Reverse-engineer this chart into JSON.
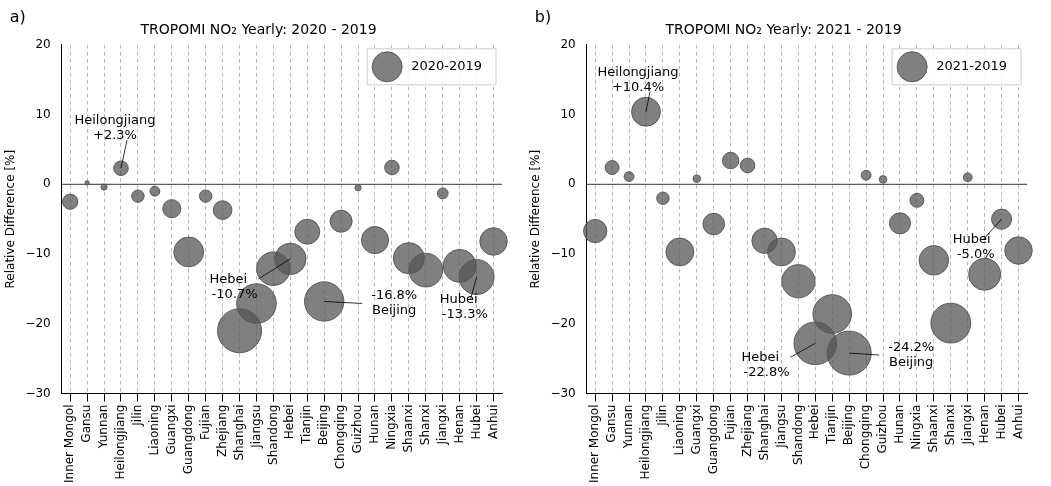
{
  "chart_data": [
    {
      "type": "bubble",
      "title": "TROPOMI NO₂ Yearly: 2020 - 2019",
      "ylabel": "Relative Difference [%]",
      "categories": [
        "Inner Mongol",
        "Gansu",
        "Yunnan",
        "Heilongjiang",
        "Jilin",
        "Liaoning",
        "Guangxi",
        "Guangdong",
        "Fujian",
        "Zhejiang",
        "Shanghai",
        "Jiangsu",
        "Shandong",
        "Hebei",
        "Tianjin",
        "Beijing",
        "Chongqing",
        "Guizhou",
        "Hunan",
        "Ningxia",
        "Shaanxi",
        "Shanxi",
        "Jiangxi",
        "Henan",
        "Hubei",
        "Anhui"
      ],
      "series": [
        {
          "name": "2020-2019",
          "color": "#555555",
          "values": [
            -2.5,
            0.2,
            -0.4,
            2.3,
            -1.7,
            -1.0,
            -3.5,
            -9.7,
            -1.7,
            -3.7,
            -21.0,
            -17.1,
            -12.1,
            -10.7,
            -6.8,
            -16.8,
            -5.3,
            -0.5,
            -8.0,
            2.4,
            -10.6,
            -12.3,
            -1.3,
            -11.7,
            -13.3,
            -8.2
          ],
          "sizes": [
            0.12,
            0.01,
            0.02,
            0.11,
            0.08,
            0.05,
            0.17,
            0.46,
            0.08,
            0.18,
            1,
            0.81,
            0.58,
            0.51,
            0.32,
            0.8,
            0.25,
            0.02,
            0.38,
            0.11,
            0.5,
            0.59,
            0.06,
            0.56,
            0.63,
            0.39
          ]
        }
      ],
      "ylim": [
        -30,
        20
      ],
      "yticks": [
        -30,
        -20,
        -10,
        0,
        10,
        20
      ],
      "grid": "x",
      "legend": "top right",
      "ref_lines": [
        {
          "axis": "y",
          "value": 0
        }
      ],
      "annotations": [
        "a)",
        {
          "text": "Heilongjiang\n+2.3%",
          "x": "Heilongjiang",
          "y": 2.3
        },
        {
          "text": "Hebei\n   -10.7%",
          "x": "Hebei",
          "y": -10.7
        },
        {
          "text": "-16.8%\nBeijing",
          "x": "Beijing",
          "y": -16.8
        },
        {
          "text": "Hubei\n   -13.3%",
          "x": "Hubei",
          "y": -13.3
        }
      ]
    },
    {
      "type": "bubble",
      "title": "TROPOMI NO₂ Yearly: 2021 - 2019",
      "ylabel": "Relative Difference [%]",
      "categories": [
        "Inner Mongol",
        "Gansu",
        "Yunnan",
        "Heilongjiang",
        "Jilin",
        "Liaoning",
        "Guangxi",
        "Guangdong",
        "Fujian",
        "Zhejiang",
        "Shanghai",
        "Jiangsu",
        "Shandong",
        "Hebei",
        "Tianjin",
        "Beijing",
        "Chongqing",
        "Guizhou",
        "Hunan",
        "Ningxia",
        "Shaanxi",
        "Shanxi",
        "Jiangxi",
        "Henan",
        "Hubei",
        "Anhui"
      ],
      "series": [
        {
          "name": "2021-2019",
          "color": "#555555",
          "values": [
            -6.7,
            2.4,
            1.1,
            10.4,
            -2.0,
            -9.7,
            0.8,
            -5.7,
            3.4,
            2.7,
            -8.1,
            -9.7,
            -13.9,
            -22.8,
            -18.6,
            -24.2,
            1.3,
            0.7,
            -5.6,
            -2.3,
            -10.9,
            -19.9,
            1.0,
            -12.9,
            -5.0,
            -9.5
          ],
          "sizes": [
            0.28,
            0.1,
            0.05,
            0.43,
            0.08,
            0.4,
            0.03,
            0.24,
            0.14,
            0.11,
            0.33,
            0.4,
            0.57,
            0.94,
            0.77,
            1,
            0.05,
            0.03,
            0.23,
            0.1,
            0.45,
            0.82,
            0.04,
            0.53,
            0.21,
            0.39
          ]
        }
      ],
      "ylim": [
        -30,
        20
      ],
      "yticks": [
        -30,
        -20,
        -10,
        0,
        10,
        20
      ],
      "grid": "x",
      "legend": "top right",
      "ref_lines": [
        {
          "axis": "y",
          "value": 0
        }
      ],
      "annotations": [
        "b)",
        {
          "text": "Heilongjiang\n+10.4%",
          "x": "Heilongjiang",
          "y": 10.4
        },
        {
          "text": "Hebei\n   -22.8%",
          "x": "Hebei",
          "y": -22.8
        },
        {
          "text": "-24.2%\nBeijing",
          "x": "Beijing",
          "y": -24.2
        },
        {
          "text": "Hubei\n  -5.0%",
          "x": "Hubei",
          "y": -5.0
        }
      ]
    }
  ]
}
